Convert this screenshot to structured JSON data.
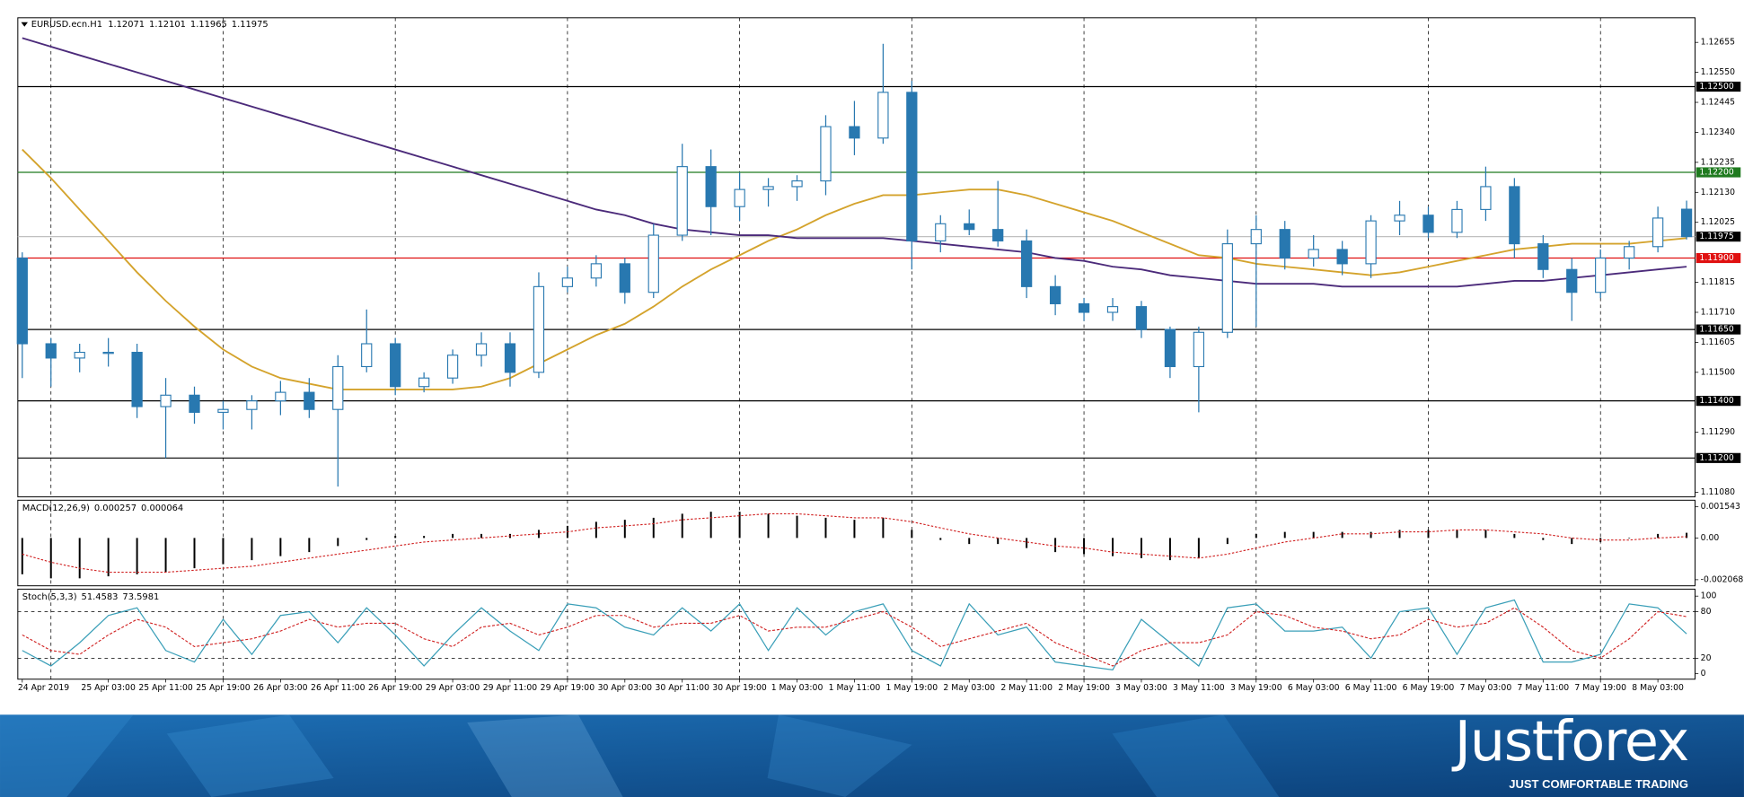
{
  "chart_data": {
    "type": "candlestick",
    "title": "EURUSD.ecn.H1",
    "ohlc_label": [
      1.12071,
      1.12101,
      1.11965,
      1.11975
    ],
    "categories": [
      "24 Apr 2019",
      null,
      null,
      "25 Apr 03:00",
      null,
      "25 Apr 11:00",
      null,
      "25 Apr 19:00",
      null,
      "26 Apr 03:00",
      null,
      "26 Apr 11:00",
      null,
      "26 Apr 19:00",
      null,
      "29 Apr 03:00",
      null,
      "29 Apr 11:00",
      null,
      "29 Apr 19:00",
      null,
      "30 Apr 03:00",
      null,
      "30 Apr 11:00",
      null,
      "30 Apr 19:00",
      null,
      "1 May 03:00",
      null,
      "1 May 11:00",
      null,
      "1 May 19:00",
      null,
      "2 May 03:00",
      null,
      "2 May 11:00",
      null,
      "2 May 19:00",
      null,
      "3 May 03:00",
      null,
      "3 May 11:00",
      null,
      "3 May 19:00",
      null,
      "6 May 03:00",
      null,
      "6 May 11:00",
      null,
      "6 May 19:00",
      null,
      "7 May 03:00",
      null,
      "7 May 11:00",
      null,
      "7 May 19:00",
      null,
      "8 May 03:00",
      null
    ],
    "open": [
      1.119,
      1.116,
      1.1155,
      1.1157,
      1.1157,
      1.1138,
      1.1142,
      1.1136,
      1.1137,
      1.114,
      1.1143,
      1.1137,
      1.1152,
      1.116,
      1.1145,
      1.1148,
      1.1156,
      1.116,
      1.115,
      1.118,
      1.1183,
      1.1188,
      1.1178,
      1.1198,
      1.1222,
      1.1208,
      1.1214,
      1.1215,
      1.1217,
      1.1236,
      1.1232,
      1.1248,
      1.1196,
      1.1202,
      1.12,
      1.1196,
      1.118,
      1.1174,
      1.1171,
      1.1173,
      1.1165,
      1.1152,
      1.1164,
      1.1195,
      1.12,
      1.119,
      1.1193,
      1.1188,
      1.1203,
      1.1205,
      1.1199,
      1.1207,
      1.1215,
      1.1195,
      1.1186,
      1.1178,
      1.119,
      1.1194,
      1.12071
    ],
    "high": [
      1.1192,
      1.1162,
      1.116,
      1.1162,
      1.116,
      1.1148,
      1.1145,
      1.114,
      1.1142,
      1.1147,
      1.1148,
      1.1156,
      1.1172,
      1.1162,
      1.115,
      1.1158,
      1.1164,
      1.1164,
      1.1185,
      1.1187,
      1.1191,
      1.119,
      1.1202,
      1.123,
      1.1228,
      1.122,
      1.1218,
      1.1219,
      1.124,
      1.1245,
      1.1265,
      1.1252,
      1.1205,
      1.1207,
      1.1217,
      1.12,
      1.1184,
      1.1176,
      1.1176,
      1.1175,
      1.1166,
      1.1166,
      1.12,
      1.1205,
      1.1203,
      1.1198,
      1.1196,
      1.1205,
      1.121,
      1.1208,
      1.121,
      1.1222,
      1.1218,
      1.1198,
      1.119,
      1.1193,
      1.1196,
      1.1208,
      1.12101
    ],
    "low": [
      1.1148,
      1.1145,
      1.115,
      1.1152,
      1.1134,
      1.112,
      1.1132,
      1.113,
      1.113,
      1.1135,
      1.1134,
      1.111,
      1.115,
      1.1142,
      1.1143,
      1.1146,
      1.1152,
      1.1145,
      1.1148,
      1.1178,
      1.118,
      1.1174,
      1.1176,
      1.1196,
      1.1198,
      1.1203,
      1.1208,
      1.121,
      1.1212,
      1.1226,
      1.123,
      1.1186,
      1.1192,
      1.1198,
      1.1194,
      1.1176,
      1.117,
      1.1168,
      1.1168,
      1.1162,
      1.1148,
      1.1136,
      1.1162,
      1.1166,
      1.1186,
      1.1187,
      1.1184,
      1.1183,
      1.1198,
      1.1197,
      1.1197,
      1.1203,
      1.119,
      1.1183,
      1.1168,
      1.1176,
      1.1186,
      1.1192,
      1.11965
    ],
    "close": [
      1.116,
      1.1155,
      1.1157,
      1.1157,
      1.1138,
      1.1142,
      1.1136,
      1.1137,
      1.114,
      1.1143,
      1.1137,
      1.1152,
      1.116,
      1.1145,
      1.1148,
      1.1156,
      1.116,
      1.115,
      1.118,
      1.1183,
      1.1188,
      1.1178,
      1.1198,
      1.1222,
      1.1208,
      1.1214,
      1.1215,
      1.1217,
      1.1236,
      1.1232,
      1.1248,
      1.1196,
      1.1202,
      1.12,
      1.1196,
      1.118,
      1.1174,
      1.1171,
      1.1173,
      1.1165,
      1.1152,
      1.1164,
      1.1195,
      1.12,
      1.119,
      1.1193,
      1.1188,
      1.1203,
      1.1205,
      1.1199,
      1.1207,
      1.1215,
      1.1195,
      1.1186,
      1.1178,
      1.119,
      1.1194,
      1.1204,
      1.11975
    ],
    "up_color": "#ffffff",
    "down_color": "#2878b0",
    "wick_color": "#2878b0",
    "moving_averages": [
      {
        "color": "#d4a32c",
        "values": [
          1.1228,
          1.1218,
          1.1207,
          1.1196,
          1.1185,
          1.1175,
          1.1166,
          1.1158,
          1.1152,
          1.1148,
          1.1146,
          1.1144,
          1.1144,
          1.1144,
          1.1144,
          1.1144,
          1.1145,
          1.1148,
          1.1153,
          1.1158,
          1.1163,
          1.1167,
          1.1173,
          1.118,
          1.1186,
          1.1191,
          1.1196,
          1.12,
          1.1205,
          1.1209,
          1.1212,
          1.1212,
          1.1213,
          1.1214,
          1.1214,
          1.1212,
          1.1209,
          1.1206,
          1.1203,
          1.1199,
          1.1195,
          1.1191,
          1.119,
          1.1188,
          1.1187,
          1.1186,
          1.1185,
          1.1184,
          1.1185,
          1.1187,
          1.1189,
          1.1191,
          1.1193,
          1.1194,
          1.1195,
          1.1195,
          1.1195,
          1.1196,
          1.1197
        ]
      },
      {
        "color": "#4b2a7a",
        "values": [
          1.1267,
          1.1264,
          1.1261,
          1.1258,
          1.1255,
          1.1252,
          1.1249,
          1.1246,
          1.1243,
          1.124,
          1.1237,
          1.1234,
          1.1231,
          1.1228,
          1.1225,
          1.1222,
          1.1219,
          1.1216,
          1.1213,
          1.121,
          1.1207,
          1.1205,
          1.1202,
          1.12,
          1.1199,
          1.1198,
          1.1198,
          1.1197,
          1.1197,
          1.1197,
          1.1197,
          1.1196,
          1.1195,
          1.1194,
          1.1193,
          1.1192,
          1.119,
          1.1189,
          1.1187,
          1.1186,
          1.1184,
          1.1183,
          1.1182,
          1.1181,
          1.1181,
          1.1181,
          1.118,
          1.118,
          1.118,
          1.118,
          1.118,
          1.1181,
          1.1182,
          1.1182,
          1.1183,
          1.1184,
          1.1185,
          1.1186,
          1.1187
        ]
      }
    ],
    "levels": [
      {
        "value": 1.125,
        "label": "1.12500",
        "color": "#000000"
      },
      {
        "value": 1.122,
        "label": "1.12200",
        "color": "#1e7a1e"
      },
      {
        "value": 1.119,
        "label": "1.11900",
        "color": "#e01010"
      },
      {
        "value": 1.1165,
        "label": "1.11650",
        "color": "#000000"
      },
      {
        "value": 1.114,
        "label": "1.11400",
        "color": "#000000"
      },
      {
        "value": 1.112,
        "label": "1.11200",
        "color": "#000000"
      }
    ],
    "current_price": 1.11975,
    "ylim": [
      1.11064,
      1.12741
    ],
    "yticks": [
      1.12655,
      {
        "value": 1.1255,
        "label": "1.12550"
      },
      1.12445,
      {
        "value": 1.1234,
        "label": "1.12340"
      },
      1.12235,
      {
        "value": 1.1213,
        "label": "1.12130"
      },
      1.12025,
      1.11815,
      {
        "value": 1.1171,
        "label": "1.11710"
      },
      1.11605,
      {
        "value": 1.115,
        "label": "1.11500"
      },
      {
        "value": 1.1129,
        "label": "1.11290"
      },
      {
        "value": 1.1108,
        "label": "1.11080"
      }
    ],
    "grid": true,
    "macd": {
      "title": "MACD(12,26,9)",
      "values_text": [
        0.000257,
        6.4e-05
      ],
      "histogram": [
        -0.0018,
        -0.002,
        -0.002,
        -0.0019,
        -0.0018,
        -0.0017,
        -0.0015,
        -0.0013,
        -0.0011,
        -0.0009,
        -0.0007,
        -0.0004,
        -0.0001,
        0.0001,
        0.0001,
        0.0002,
        0.0002,
        0.0002,
        0.0004,
        0.0006,
        0.0008,
        0.0009,
        0.001,
        0.0012,
        0.0013,
        0.0013,
        0.0012,
        0.0011,
        0.001,
        0.0009,
        0.001,
        0.0004,
        -0.0001,
        -0.0003,
        -0.0003,
        -0.0005,
        -0.0007,
        -0.0008,
        -0.0009,
        -0.001,
        -0.0011,
        -0.001,
        -0.0003,
        0.0002,
        0.0003,
        0.0003,
        0.0003,
        0.0003,
        0.0004,
        0.0004,
        0.0004,
        0.0004,
        0.0002,
        -0.0001,
        -0.0003,
        -0.0002,
        0.0,
        0.0002,
        0.000257
      ],
      "signal": [
        -0.0008,
        -0.0012,
        -0.0015,
        -0.0017,
        -0.0017,
        -0.0017,
        -0.0016,
        -0.0015,
        -0.0014,
        -0.0012,
        -0.001,
        -0.0008,
        -0.0006,
        -0.0004,
        -0.0002,
        -0.0001,
        0.0,
        0.0001,
        0.0002,
        0.0003,
        0.0005,
        0.0006,
        0.0007,
        0.0009,
        0.001,
        0.0011,
        0.0012,
        0.0012,
        0.0011,
        0.001,
        0.001,
        0.0008,
        0.0005,
        0.0002,
        0.0,
        -0.0002,
        -0.0004,
        -0.0005,
        -0.0007,
        -0.0008,
        -0.0009,
        -0.001,
        -0.0008,
        -0.0005,
        -0.0002,
        0.0,
        0.0002,
        0.0002,
        0.0003,
        0.0003,
        0.0004,
        0.0004,
        0.0003,
        0.0002,
        0.0,
        -0.0001,
        -0.0001,
        0.0,
        6.4e-05
      ],
      "histogram_color": "#000000",
      "signal_color": "#d02020",
      "ylim": [
        -0.00237,
        0.00187
      ],
      "yticks": [
        0.001543,
        {
          "value": 0,
          "label": "0.00"
        },
        -0.002068
      ]
    },
    "stoch": {
      "title": "Stoch(5,3,3)",
      "values_text": [
        51.4583,
        73.5981
      ],
      "main": [
        30,
        10,
        40,
        75,
        85,
        30,
        15,
        70,
        25,
        75,
        80,
        40,
        85,
        50,
        10,
        50,
        85,
        55,
        30,
        90,
        85,
        60,
        50,
        85,
        55,
        90,
        30,
        85,
        50,
        80,
        90,
        30,
        10,
        90,
        50,
        60,
        15,
        10,
        5,
        70,
        40,
        10,
        85,
        90,
        55,
        55,
        60,
        20,
        80,
        85,
        25,
        85,
        95,
        15,
        15,
        25,
        90,
        85,
        51.4583
      ],
      "signal": [
        50,
        30,
        25,
        50,
        70,
        60,
        35,
        40,
        45,
        55,
        70,
        60,
        65,
        65,
        45,
        35,
        60,
        65,
        50,
        60,
        75,
        75,
        60,
        65,
        65,
        75,
        55,
        60,
        60,
        70,
        80,
        60,
        35,
        45,
        55,
        65,
        40,
        25,
        10,
        30,
        40,
        40,
        50,
        80,
        75,
        60,
        55,
        45,
        50,
        70,
        60,
        65,
        85,
        60,
        30,
        20,
        45,
        80,
        73.5981
      ],
      "main_color": "#3a9fb8",
      "signal_color": "#d02020",
      "levels": [
        80,
        20
      ],
      "ylim": [
        -7,
        109
      ],
      "yticks": [
        100,
        80,
        20,
        0
      ]
    }
  },
  "footer": {
    "logo": "Justforex",
    "tagline": "JUST COMFORTABLE TRADING"
  }
}
